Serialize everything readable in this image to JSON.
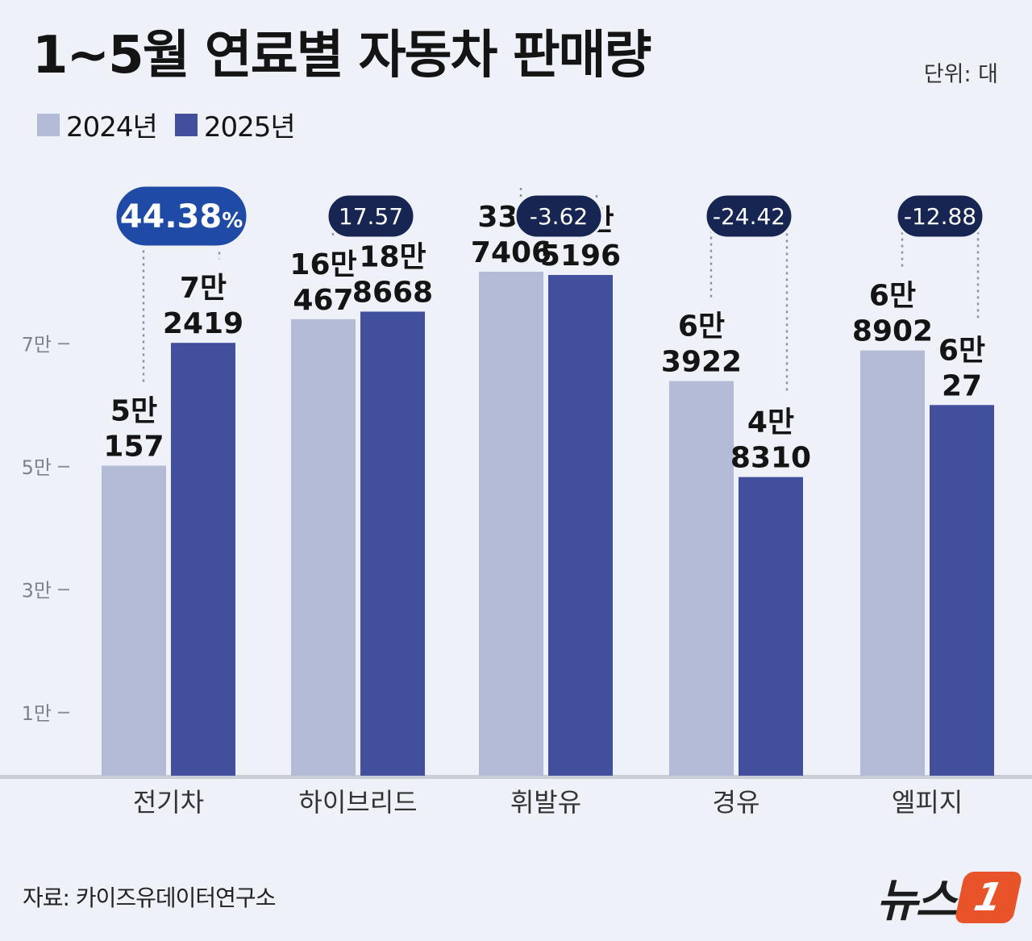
{
  "header": {
    "title": "1~5월 연료별 자동차 판매량",
    "unit": "단위: 대"
  },
  "legend": [
    {
      "label": "2024년",
      "color": "#b3bbd6"
    },
    {
      "label": "2025년",
      "color": "#414f9c"
    }
  ],
  "colors": {
    "series_2024": "#b3bbd6",
    "series_2025": "#414f9c",
    "badge_highlight": "#1f4aa6",
    "badge_default": "#172552",
    "background": "#eef2f8",
    "logo_accent": "#e8532a"
  },
  "chart_data": {
    "type": "bar",
    "categories": [
      "전기차",
      "하이브리드",
      "휘발유",
      "경유",
      "엘피지"
    ],
    "series": [
      {
        "name": "2024년",
        "values": [
          50157,
          160467,
          337406,
          63922,
          68902
        ],
        "labels": [
          [
            "5만",
            "157"
          ],
          [
            "16만",
            "467"
          ],
          [
            "33만",
            "7406"
          ],
          [
            "6만",
            "3922"
          ],
          [
            "6만",
            "8902"
          ]
        ]
      },
      {
        "name": "2025년",
        "values": [
          72419,
          188668,
          325196,
          48310,
          60027
        ],
        "labels": [
          [
            "7만",
            "2419"
          ],
          [
            "18만",
            "8668"
          ],
          [
            "32만",
            "5196"
          ],
          [
            "4만",
            "8310"
          ],
          [
            "6만",
            "27"
          ]
        ]
      }
    ],
    "change_pct": [
      {
        "text": "44.38",
        "unit": "%",
        "highlight": true
      },
      {
        "text": "17.57",
        "unit": "",
        "highlight": false
      },
      {
        "text": "-3.62",
        "unit": "",
        "highlight": false
      },
      {
        "text": "-24.42",
        "unit": "",
        "highlight": false
      },
      {
        "text": "-12.88",
        "unit": "",
        "highlight": false
      }
    ],
    "yticks": [
      {
        "label": "1만",
        "value": 10000
      },
      {
        "label": "3만",
        "value": 30000
      },
      {
        "label": "5만",
        "value": 50000
      },
      {
        "label": "7만",
        "value": 70000
      }
    ],
    "axis_break": true,
    "xlabel": "",
    "ylabel": ""
  },
  "footer": {
    "source": "자료: 카이즈유데이터연구소",
    "logo_text": "뉴스",
    "logo_mark": "1"
  }
}
